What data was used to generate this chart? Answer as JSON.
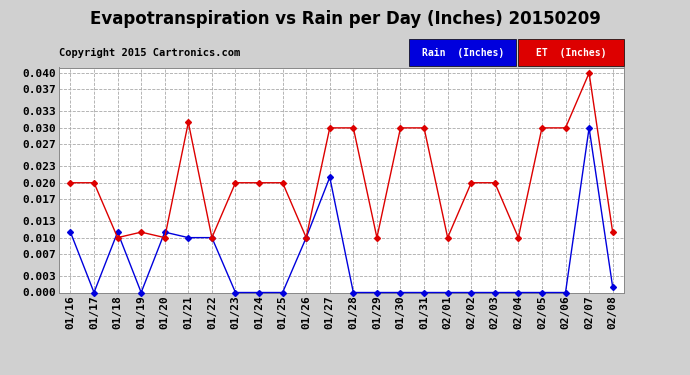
{
  "title": "Evapotranspiration vs Rain per Day (Inches) 20150209",
  "copyright": "Copyright 2015 Cartronics.com",
  "background_color": "#d0d0d0",
  "plot_bg_color": "#ffffff",
  "grid_color": "#aaaaaa",
  "dates": [
    "01/16",
    "01/17",
    "01/18",
    "01/19",
    "01/20",
    "01/21",
    "01/22",
    "01/23",
    "01/24",
    "01/25",
    "01/26",
    "01/27",
    "01/28",
    "01/29",
    "01/30",
    "01/31",
    "02/01",
    "02/02",
    "02/03",
    "02/04",
    "02/05",
    "02/06",
    "02/07",
    "02/08"
  ],
  "rain": [
    0.011,
    0.0,
    0.011,
    0.0,
    0.011,
    0.01,
    0.01,
    0.0,
    0.0,
    0.0,
    0.01,
    0.021,
    0.0,
    0.0,
    0.0,
    0.0,
    0.0,
    0.0,
    0.0,
    0.0,
    0.0,
    0.0,
    0.03,
    0.001
  ],
  "et": [
    0.02,
    0.02,
    0.01,
    0.011,
    0.01,
    0.031,
    0.01,
    0.02,
    0.02,
    0.02,
    0.01,
    0.03,
    0.03,
    0.01,
    0.03,
    0.03,
    0.01,
    0.02,
    0.02,
    0.01,
    0.03,
    0.03,
    0.04,
    0.011
  ],
  "ylim": [
    0.0,
    0.041
  ],
  "yticks": [
    0.0,
    0.003,
    0.007,
    0.01,
    0.013,
    0.017,
    0.02,
    0.023,
    0.027,
    0.03,
    0.033,
    0.037,
    0.04
  ],
  "rain_color": "#0000dd",
  "et_color": "#dd0000",
  "marker": "D",
  "marker_size": 3.0,
  "title_fontsize": 12,
  "copyright_fontsize": 7.5,
  "tick_fontsize": 8,
  "legend_rain_bg": "#0000dd",
  "legend_et_bg": "#dd0000",
  "legend_rain_text": "Rain  (Inches)",
  "legend_et_text": "ET  (Inches)"
}
